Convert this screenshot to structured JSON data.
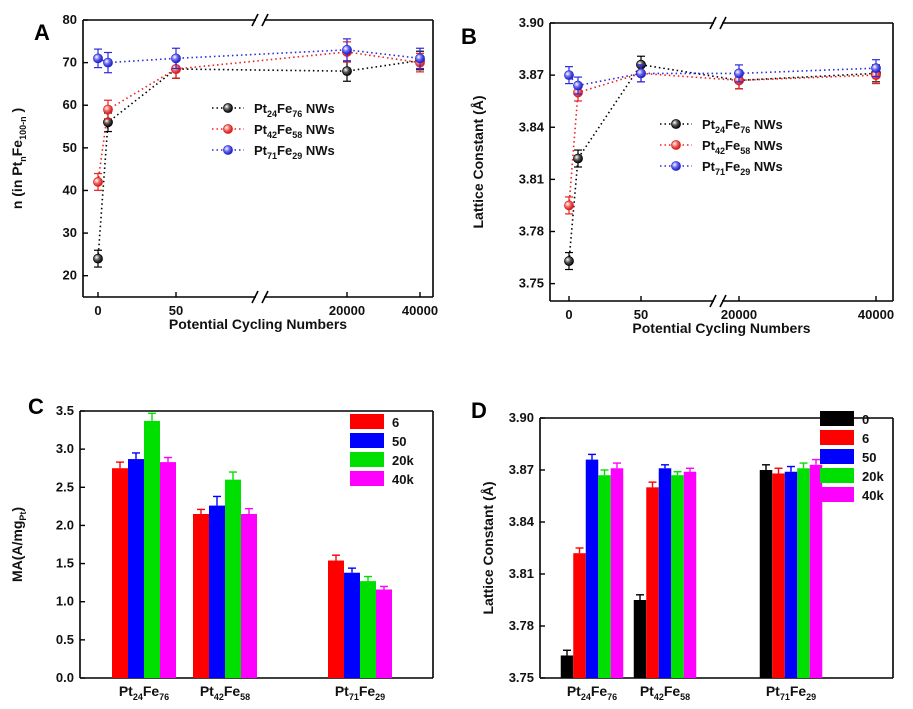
{
  "chart_data": [
    {
      "panel": "A",
      "type": "scatter",
      "xlabel": "Potential Cycling Numbers",
      "ylabel": "n (in Pt",
      "ylabel_parts": {
        "pre": "n (in Pt",
        "n": "n",
        "fe": "Fe",
        "sub": "100-n",
        "post": ")"
      },
      "ylim": [
        15,
        80
      ],
      "yticks": [
        "20",
        "30",
        "40",
        "50",
        "60",
        "70",
        "80"
      ],
      "xtick_labels": [
        "0",
        "50",
        "20000",
        "40000"
      ],
      "x_categories": [
        0,
        5,
        50,
        20000,
        40000
      ],
      "series": [
        {
          "name": "Pt24Fe76 NWs",
          "label_pt": "Pt",
          "sub1": "24",
          "label_fe": "Fe",
          "sub2": "76",
          "suffix": " NWs",
          "color": "#000000",
          "x": [
            0,
            5,
            50,
            20000,
            40000
          ],
          "y": [
            24,
            56,
            68.5,
            68,
            70.5
          ],
          "err": [
            0.8,
            1.0,
            1.0,
            1.2,
            1.0
          ]
        },
        {
          "name": "Pt42Fe58 NWs",
          "label_pt": "Pt",
          "sub1": "42",
          "label_fe": "Fe",
          "sub2": "58",
          "suffix": " NWs",
          "color": "#e8211e",
          "x": [
            0,
            5,
            50,
            20000,
            40000
          ],
          "y": [
            42,
            59,
            68.5,
            72.5,
            70
          ],
          "err": [
            0.8,
            1.0,
            1.0,
            1.2,
            1.0
          ]
        },
        {
          "name": "Pt71Fe29 NWs",
          "label_pt": "Pt",
          "sub1": "71",
          "label_fe": "Fe",
          "sub2": "29",
          "suffix": " NWs",
          "color": "#2a2ae0",
          "x": [
            0,
            5,
            50,
            20000,
            40000
          ],
          "y": [
            71,
            70,
            71,
            73,
            71
          ],
          "err": [
            1.0,
            1.2,
            1.2,
            1.4,
            1.2
          ]
        }
      ]
    },
    {
      "panel": "B",
      "type": "scatter",
      "xlabel": "Potential Cycling Numbers",
      "ylabel": "Lattice Constant (Å)",
      "ylim": [
        3.74,
        3.9
      ],
      "yticks": [
        "3.75",
        "3.78",
        "3.81",
        "3.84",
        "3.87",
        "3.90"
      ],
      "xtick_labels": [
        "0",
        "50",
        "20000",
        "40000"
      ],
      "x_categories": [
        0,
        5,
        50,
        20000,
        40000
      ],
      "series": [
        {
          "name": "Pt24Fe76 NWs",
          "label_pt": "Pt",
          "sub1": "24",
          "label_fe": "Fe",
          "sub2": "76",
          "suffix": " NWs",
          "color": "#000000",
          "x": [
            0,
            5,
            50,
            20000,
            40000
          ],
          "y": [
            3.763,
            3.822,
            3.876,
            3.867,
            3.871
          ],
          "err": [
            0.002,
            0.002,
            0.002,
            0.002,
            0.002
          ]
        },
        {
          "name": "Pt42Fe58 NWs",
          "label_pt": "Pt",
          "sub1": "42",
          "label_fe": "Fe",
          "sub2": "58",
          "suffix": " NWs",
          "color": "#e8211e",
          "x": [
            0,
            5,
            50,
            20000,
            40000
          ],
          "y": [
            3.795,
            3.86,
            3.871,
            3.867,
            3.87
          ],
          "err": [
            0.002,
            0.002,
            0.002,
            0.002,
            0.002
          ]
        },
        {
          "name": "Pt71Fe29 NWs",
          "label_pt": "Pt",
          "sub1": "71",
          "label_fe": "Fe",
          "sub2": "29",
          "suffix": " NWs",
          "color": "#2a2ae0",
          "x": [
            0,
            5,
            50,
            20000,
            40000
          ],
          "y": [
            3.87,
            3.864,
            3.871,
            3.871,
            3.874
          ],
          "err": [
            0.002,
            0.002,
            0.002,
            0.002,
            0.002
          ]
        }
      ]
    },
    {
      "panel": "C",
      "type": "bar",
      "ylabel": "MA(A/mg",
      "ylabel_sub": "Pt",
      "ylabel_post": ")",
      "ylim": [
        0,
        3.5
      ],
      "yticks": [
        "0.0",
        "0.5",
        "1.0",
        "1.5",
        "2.0",
        "2.5",
        "3.0",
        "3.5"
      ],
      "categories": [
        {
          "pt": "Pt",
          "s1": "24",
          "fe": "Fe",
          "s2": "76"
        },
        {
          "pt": "Pt",
          "s1": "42",
          "fe": "Fe",
          "s2": "58"
        },
        {
          "pt": "Pt",
          "s1": "71",
          "fe": "Fe",
          "s2": "29"
        }
      ],
      "series": [
        {
          "name": "6",
          "color": "#ff0000",
          "values": [
            2.75,
            2.15,
            1.54
          ],
          "err": [
            0.08,
            0.06,
            0.07
          ]
        },
        {
          "name": "50",
          "color": "#0000ff",
          "values": [
            2.87,
            2.26,
            1.38
          ],
          "err": [
            0.08,
            0.12,
            0.06
          ]
        },
        {
          "name": "20k",
          "color": "#00e000",
          "values": [
            3.37,
            2.6,
            1.27
          ],
          "err": [
            0.1,
            0.1,
            0.06
          ]
        },
        {
          "name": "40k",
          "color": "#ff00ff",
          "values": [
            2.83,
            2.15,
            1.16
          ],
          "err": [
            0.06,
            0.07,
            0.04
          ]
        }
      ]
    },
    {
      "panel": "D",
      "type": "bar",
      "ylabel": "Lattice Constant (Å)",
      "ylim": [
        3.75,
        3.9
      ],
      "yticks": [
        "3.75",
        "3.78",
        "3.81",
        "3.84",
        "3.87",
        "3.90"
      ],
      "categories": [
        {
          "pt": "Pt",
          "s1": "24",
          "fe": "Fe",
          "s2": "76"
        },
        {
          "pt": "Pt",
          "s1": "42",
          "fe": "Fe",
          "s2": "58"
        },
        {
          "pt": "Pt",
          "s1": "71",
          "fe": "Fe",
          "s2": "29"
        }
      ],
      "series": [
        {
          "name": "0",
          "color": "#000000",
          "values": [
            3.763,
            3.795,
            3.87
          ],
          "err": [
            0.003,
            0.003,
            0.003
          ]
        },
        {
          "name": "6",
          "color": "#ff0000",
          "values": [
            3.822,
            3.86,
            3.868
          ],
          "err": [
            0.003,
            0.003,
            0.003
          ]
        },
        {
          "name": "50",
          "color": "#0000ff",
          "values": [
            3.876,
            3.871,
            3.869
          ],
          "err": [
            0.003,
            0.002,
            0.003
          ]
        },
        {
          "name": "20k",
          "color": "#00e000",
          "values": [
            3.867,
            3.867,
            3.871
          ],
          "err": [
            0.003,
            0.002,
            0.003
          ]
        },
        {
          "name": "40k",
          "color": "#ff00ff",
          "values": [
            3.871,
            3.869,
            3.873
          ],
          "err": [
            0.003,
            0.002,
            0.003
          ]
        }
      ]
    }
  ],
  "panel_letters": [
    "A",
    "B",
    "C",
    "D"
  ]
}
